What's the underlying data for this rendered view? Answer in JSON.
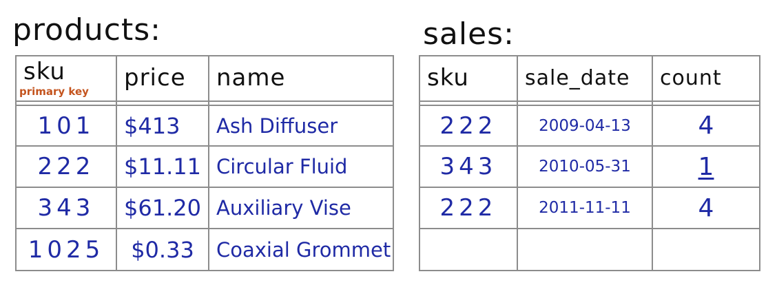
{
  "products": {
    "title": "products:",
    "columns": [
      "sku",
      "price",
      "name"
    ],
    "primary_key_note": "primary key",
    "rows": [
      {
        "sku": "101",
        "price": "$413",
        "name": "Ash Diffuser"
      },
      {
        "sku": "222",
        "price": "$11.11",
        "name": "Circular Fluid"
      },
      {
        "sku": "343",
        "price": "$61.20",
        "name": "Auxiliary Vise"
      },
      {
        "sku": "1025",
        "price": "$0.33",
        "name": "Coaxial Grommet"
      }
    ]
  },
  "sales": {
    "title": "sales:",
    "columns": [
      "sku",
      "sale_date",
      "count"
    ],
    "rows": [
      {
        "sku": "222",
        "sale_date": "2009-04-13",
        "count": "4"
      },
      {
        "sku": "343",
        "sale_date": "2010-05-31",
        "count": "1"
      },
      {
        "sku": "222",
        "sale_date": "2011-11-11",
        "count": "4"
      }
    ]
  },
  "colors": {
    "ink": "#111111",
    "data_ink": "#1f2aa5",
    "annotation": "#c4541e",
    "grid": "#8c8c8c"
  }
}
